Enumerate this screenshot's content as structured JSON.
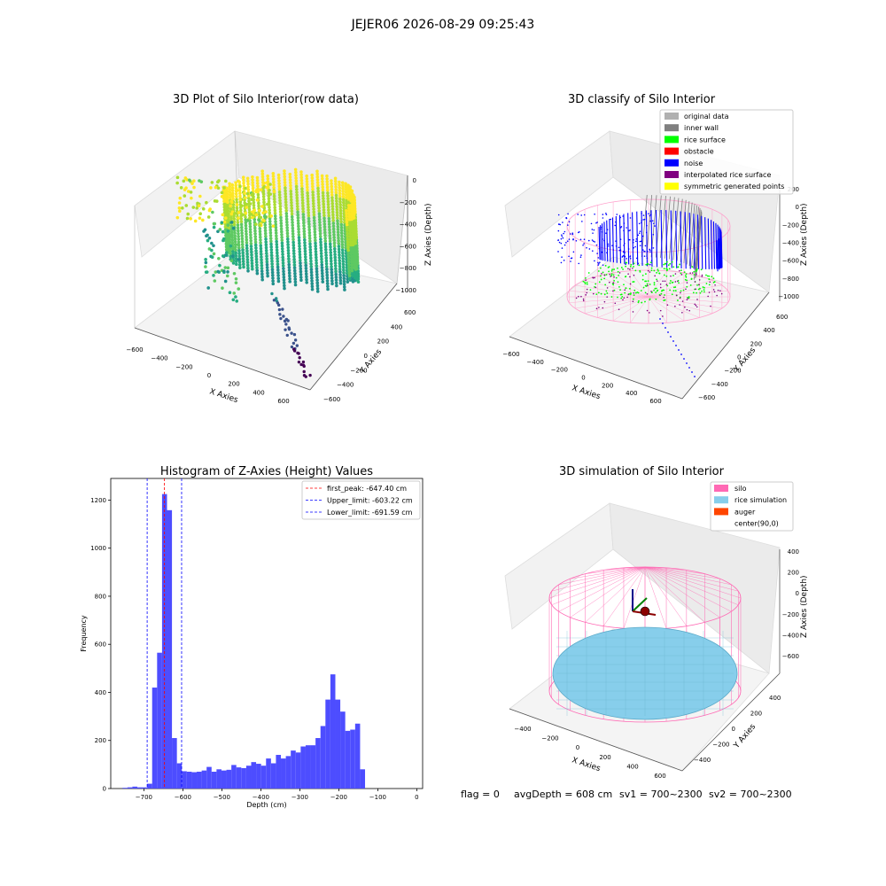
{
  "suptitle": "JEJER06 2026-08-29 09:25:43",
  "footer": {
    "flag": "flag = 0",
    "avg_depth": "avgDepth = 608 cm",
    "sv1": "sv1 = 700~2300",
    "sv2": "sv2 = 700~2300"
  },
  "colors": {
    "hist_bar": "#4d4dff",
    "silo": "#ff69b4",
    "rice": "#87ceeb",
    "auger": "#ff4500",
    "noise": "#0000ff",
    "rice_surface": "#00ff00",
    "original": "#b0b0b0",
    "inner_wall": "#808080",
    "obstacle": "#ff0000",
    "interpolated": "#800080",
    "symmetric": "#ffff00"
  },
  "chart_data": [
    {
      "type": "scatter3d",
      "title": "3D Plot of Silo Interior(row data)",
      "xlabel": "X Axies",
      "ylabel": "Y Axies",
      "zlabel": "Z Axies (Depth)",
      "x_ticks": [
        "−600",
        "−400",
        "−200",
        "0",
        "200",
        "400",
        "600"
      ],
      "y_ticks": [
        "−600",
        "−400",
        "−200",
        "0",
        "200",
        "400",
        "600"
      ],
      "z_ticks": [
        "0",
        "−200",
        "−400",
        "−600",
        "−800",
        "−1000"
      ],
      "colormap": "viridis",
      "xlim": [
        -600,
        600
      ],
      "ylim": [
        -600,
        600
      ],
      "zlim": [
        -1100,
        0
      ]
    },
    {
      "type": "scatter3d",
      "title": "3D classify of Silo Interior",
      "xlabel": "X Axies",
      "ylabel": "Y Axies",
      "zlabel": "Z Axies (Depth)",
      "x_ticks": [
        "−600",
        "−400",
        "−200",
        "0",
        "200",
        "400",
        "600"
      ],
      "y_ticks": [
        "−600",
        "−400",
        "−200",
        "0",
        "200",
        "400",
        "600"
      ],
      "z_ticks": [
        "200",
        "0",
        "−200",
        "−400",
        "−600",
        "−800",
        "−1000"
      ],
      "legend_position": "top-right",
      "legend": [
        {
          "label": "original data",
          "color": "#b0b0b0"
        },
        {
          "label": "inner wall",
          "color": "#808080"
        },
        {
          "label": "rice surface",
          "color": "#00ff00"
        },
        {
          "label": "obstacle",
          "color": "#ff0000"
        },
        {
          "label": "noise",
          "color": "#0000ff"
        },
        {
          "label": "interpolated rice surface",
          "color": "#800080"
        },
        {
          "label": "symmetric generated points",
          "color": "#ffff00"
        }
      ]
    },
    {
      "type": "bar",
      "title": "Histogram of Z-Axies (Height) Values",
      "xlabel": "Depth (cm)",
      "ylabel": "Frequency",
      "xlim": [
        -785,
        15
      ],
      "ylim": [
        0,
        1290
      ],
      "x_ticks": [
        -700,
        -600,
        -500,
        -400,
        -300,
        -200,
        -100,
        0
      ],
      "x_tick_labels": [
        "−700",
        "−600",
        "−500",
        "−400",
        "−300",
        "−200",
        "−100",
        "0"
      ],
      "y_ticks": [
        0,
        200,
        400,
        600,
        800,
        1000,
        1200
      ],
      "bin_start": -755,
      "bin_width": 12.7,
      "values": [
        3,
        5,
        8,
        5,
        5,
        20,
        420,
        565,
        1225,
        1158,
        210,
        105,
        72,
        70,
        68,
        70,
        75,
        90,
        70,
        80,
        75,
        78,
        98,
        88,
        85,
        95,
        110,
        103,
        95,
        125,
        105,
        140,
        125,
        135,
        158,
        150,
        175,
        180,
        180,
        210,
        260,
        370,
        475,
        370,
        320,
        240,
        245,
        270,
        80
      ],
      "lines": [
        {
          "x": -647.4,
          "color": "#ff0000",
          "label": "first_peak: -647.40 cm"
        },
        {
          "x": -603.22,
          "color": "#0000ff",
          "label": "Upper_limit: -603.22 cm"
        },
        {
          "x": -691.59,
          "color": "#0000ff",
          "label": "Lower_limit: -691.59 cm"
        }
      ],
      "legend_position": "top-right"
    },
    {
      "type": "surface3d",
      "title": "3D simulation of Silo Interior",
      "xlabel": "X Axies",
      "ylabel": "Y Axies",
      "zlabel": "Z Axies (Depth)",
      "x_ticks": [
        "−400",
        "−200",
        "0",
        "200",
        "400",
        "600"
      ],
      "y_ticks": [
        "−400",
        "−200",
        "0",
        "200",
        "400"
      ],
      "z_ticks": [
        "400",
        "200",
        "0",
        "−200",
        "−400",
        "−600"
      ],
      "legend_position": "top-right",
      "legend": [
        {
          "label": "silo",
          "color": "#ff69b4"
        },
        {
          "label": "rice simulation",
          "color": "#87ceeb"
        },
        {
          "label": "auger",
          "color": "#ff4500"
        },
        {
          "label": "center(90,0)",
          "color": ""
        }
      ]
    }
  ]
}
